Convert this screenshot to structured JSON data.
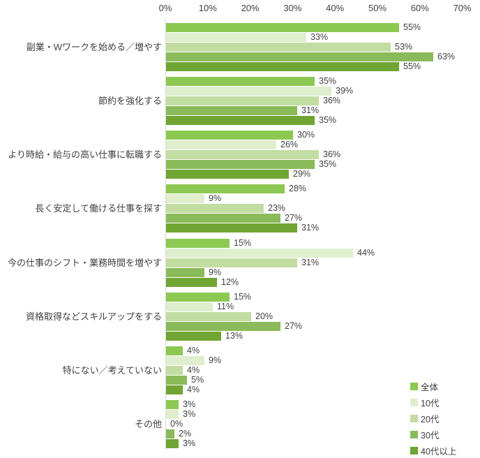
{
  "chart_data": {
    "type": "bar",
    "orientation": "horizontal",
    "title": "",
    "categories": [
      "副業・Wワークを始める／増やす",
      "節約を強化する",
      "より時給・給与の高い仕事に転職する",
      "長く安定して働ける仕事を探す",
      "今の仕事のシフト・業務時間を増やす",
      "資格取得などスキルアップをする",
      "特にない／考えていない",
      "その他"
    ],
    "series": [
      {
        "name": "全体",
        "color": "#8DC852",
        "values": [
          55,
          35,
          30,
          28,
          15,
          15,
          4,
          3
        ]
      },
      {
        "name": "10代",
        "color": "#DFEFCE",
        "values": [
          33,
          39,
          26,
          9,
          44,
          11,
          9,
          3
        ]
      },
      {
        "name": "20代",
        "color": "#C2DDA1",
        "values": [
          53,
          36,
          36,
          23,
          31,
          20,
          4,
          0
        ]
      },
      {
        "name": "30代",
        "color": "#8ABA5A",
        "values": [
          63,
          31,
          35,
          27,
          9,
          27,
          5,
          2
        ]
      },
      {
        "name": "40代以上",
        "color": "#70A533",
        "values": [
          55,
          35,
          29,
          31,
          12,
          13,
          4,
          3
        ]
      }
    ],
    "x_axis": {
      "position": "top",
      "min": 0,
      "max": 70,
      "step": 10,
      "tick_labels": [
        "0%",
        "10%",
        "20%",
        "30%",
        "40%",
        "50%",
        "60%",
        "70%"
      ]
    },
    "value_label_suffix": "%",
    "legend_position": "bottom-right",
    "grid": false,
    "colors": {
      "text": "#404040",
      "axis_line": "#D9D9D9",
      "background": "#FFFFFF"
    }
  }
}
